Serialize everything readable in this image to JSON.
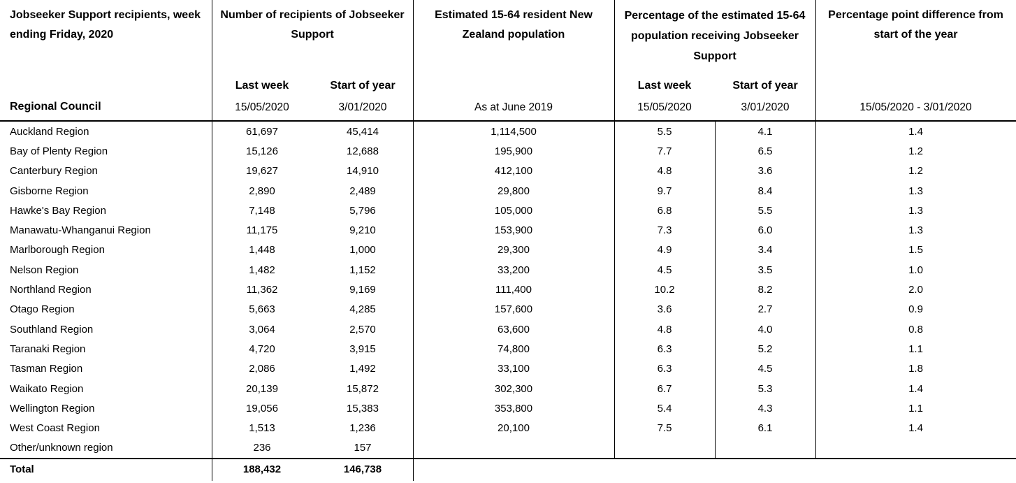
{
  "colors": {
    "text": "#000000",
    "line": "#000000",
    "background": "#ffffff"
  },
  "header": {
    "corner_title": "Jobseeker Support recipients, week ending Friday, 2020",
    "row_header": "Regional Council",
    "groups": [
      {
        "label": "Number of recipients of Jobseeker Support",
        "sub": [
          {
            "label": "Last week",
            "date": "15/05/2020"
          },
          {
            "label": "Start of year",
            "date": "3/01/2020"
          }
        ]
      },
      {
        "label": "Estimated 15-64 resident New Zealand population",
        "date": "As at June 2019"
      },
      {
        "label": "Percentage of the estimated 15-64 population receiving Jobseeker Support",
        "sub": [
          {
            "label": "Last week",
            "date": "15/05/2020"
          },
          {
            "label": "Start of year",
            "date": "3/01/2020"
          }
        ]
      },
      {
        "label": "Percentage point difference from start of the year",
        "date": "15/05/2020 - 3/01/2020"
      }
    ]
  },
  "columns": [
    "Regional Council",
    "Recipients last week 15/05/2020",
    "Recipients start of year 3/01/2020",
    "Estimated 15-64 population as at June 2019",
    "Percentage last week 15/05/2020",
    "Percentage start of year 3/01/2020",
    "Percentage point difference 15/05/2020 - 3/01/2020"
  ],
  "rows": [
    {
      "region": "Auckland Region",
      "values": [
        "61,697",
        "45,414",
        "1,114,500",
        "5.5",
        "4.1",
        "1.4"
      ]
    },
    {
      "region": "Bay of Plenty Region",
      "values": [
        "15,126",
        "12,688",
        "195,900",
        "7.7",
        "6.5",
        "1.2"
      ]
    },
    {
      "region": "Canterbury Region",
      "values": [
        "19,627",
        "14,910",
        "412,100",
        "4.8",
        "3.6",
        "1.2"
      ]
    },
    {
      "region": "Gisborne Region",
      "values": [
        "2,890",
        "2,489",
        "29,800",
        "9.7",
        "8.4",
        "1.3"
      ]
    },
    {
      "region": "Hawke's Bay Region",
      "values": [
        "7,148",
        "5,796",
        "105,000",
        "6.8",
        "5.5",
        "1.3"
      ]
    },
    {
      "region": "Manawatu-Whanganui Region",
      "values": [
        "11,175",
        "9,210",
        "153,900",
        "7.3",
        "6.0",
        "1.3"
      ]
    },
    {
      "region": "Marlborough Region",
      "values": [
        "1,448",
        "1,000",
        "29,300",
        "4.9",
        "3.4",
        "1.5"
      ]
    },
    {
      "region": "Nelson Region",
      "values": [
        "1,482",
        "1,152",
        "33,200",
        "4.5",
        "3.5",
        "1.0"
      ]
    },
    {
      "region": "Northland Region",
      "values": [
        "11,362",
        "9,169",
        "111,400",
        "10.2",
        "8.2",
        "2.0"
      ]
    },
    {
      "region": "Otago Region",
      "values": [
        "5,663",
        "4,285",
        "157,600",
        "3.6",
        "2.7",
        "0.9"
      ]
    },
    {
      "region": "Southland Region",
      "values": [
        "3,064",
        "2,570",
        "63,600",
        "4.8",
        "4.0",
        "0.8"
      ]
    },
    {
      "region": "Taranaki Region",
      "values": [
        "4,720",
        "3,915",
        "74,800",
        "6.3",
        "5.2",
        "1.1"
      ]
    },
    {
      "region": "Tasman Region",
      "values": [
        "2,086",
        "1,492",
        "33,100",
        "6.3",
        "4.5",
        "1.8"
      ]
    },
    {
      "region": "Waikato Region",
      "values": [
        "20,139",
        "15,872",
        "302,300",
        "6.7",
        "5.3",
        "1.4"
      ]
    },
    {
      "region": "Wellington Region",
      "values": [
        "19,056",
        "15,383",
        "353,800",
        "5.4",
        "4.3",
        "1.1"
      ]
    },
    {
      "region": "West Coast Region",
      "values": [
        "1,513",
        "1,236",
        "20,100",
        "7.5",
        "6.1",
        "1.4"
      ]
    },
    {
      "region": "Other/unknown region",
      "values": [
        "236",
        "157",
        "",
        "",
        "",
        ""
      ]
    }
  ],
  "total": {
    "label": "Total",
    "values": [
      "188,432",
      "146,738",
      "",
      "",
      "",
      ""
    ]
  }
}
